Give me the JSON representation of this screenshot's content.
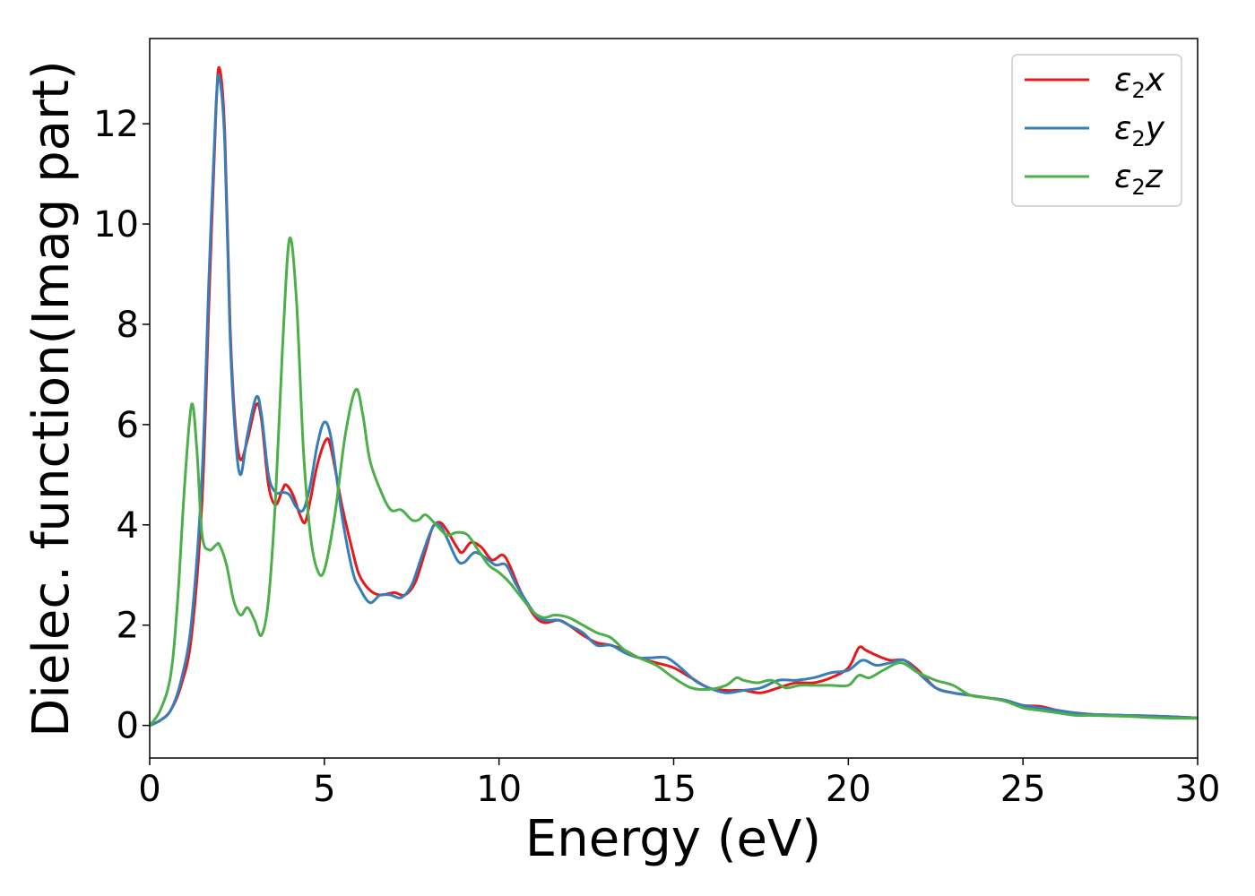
{
  "chart_data": {
    "type": "line",
    "title": "",
    "xlabel": "Energy (eV)",
    "ylabel": "Dielec. function(Imag part)",
    "xlim": [
      0,
      30
    ],
    "ylim": [
      -0.65,
      13.7
    ],
    "xticks": [
      0,
      5,
      10,
      15,
      20,
      25,
      30
    ],
    "yticks": [
      0,
      2,
      4,
      6,
      8,
      10,
      12
    ],
    "grid": false,
    "legend_position": "top-right",
    "series": [
      {
        "name": "ε₂x",
        "legend_base": "ε",
        "legend_sub": "2",
        "legend_suffix": "x",
        "color": "#e41a1c",
        "points": [
          [
            0,
            0
          ],
          [
            0.3,
            0.1
          ],
          [
            0.6,
            0.3
          ],
          [
            0.9,
            0.8
          ],
          [
            1.2,
            1.8
          ],
          [
            1.5,
            4.5
          ],
          [
            1.7,
            8.5
          ],
          [
            1.9,
            12.3
          ],
          [
            2.0,
            13.1
          ],
          [
            2.15,
            11.8
          ],
          [
            2.3,
            8.0
          ],
          [
            2.45,
            6.0
          ],
          [
            2.6,
            5.3
          ],
          [
            2.8,
            5.7
          ],
          [
            3.05,
            6.4
          ],
          [
            3.2,
            6.1
          ],
          [
            3.4,
            4.8
          ],
          [
            3.6,
            4.4
          ],
          [
            3.8,
            4.7
          ],
          [
            3.9,
            4.8
          ],
          [
            4.1,
            4.6
          ],
          [
            4.3,
            4.2
          ],
          [
            4.45,
            4.05
          ],
          [
            4.6,
            4.5
          ],
          [
            4.8,
            5.2
          ],
          [
            5.05,
            5.7
          ],
          [
            5.2,
            5.5
          ],
          [
            5.5,
            4.4
          ],
          [
            5.8,
            3.5
          ],
          [
            6.0,
            3.0
          ],
          [
            6.3,
            2.7
          ],
          [
            6.6,
            2.6
          ],
          [
            7.0,
            2.65
          ],
          [
            7.3,
            2.6
          ],
          [
            7.6,
            2.85
          ],
          [
            7.9,
            3.5
          ],
          [
            8.1,
            3.95
          ],
          [
            8.3,
            4.05
          ],
          [
            8.5,
            3.9
          ],
          [
            8.8,
            3.55
          ],
          [
            8.95,
            3.45
          ],
          [
            9.2,
            3.65
          ],
          [
            9.5,
            3.55
          ],
          [
            9.8,
            3.3
          ],
          [
            10.1,
            3.4
          ],
          [
            10.3,
            3.2
          ],
          [
            10.6,
            2.7
          ],
          [
            11.0,
            2.2
          ],
          [
            11.3,
            2.05
          ],
          [
            11.7,
            2.1
          ],
          [
            12.0,
            2.0
          ],
          [
            12.4,
            1.8
          ],
          [
            12.8,
            1.65
          ],
          [
            13.2,
            1.6
          ],
          [
            13.6,
            1.5
          ],
          [
            14.0,
            1.35
          ],
          [
            14.5,
            1.25
          ],
          [
            15.0,
            1.15
          ],
          [
            15.5,
            0.95
          ],
          [
            16.0,
            0.75
          ],
          [
            16.5,
            0.7
          ],
          [
            17.0,
            0.7
          ],
          [
            17.5,
            0.65
          ],
          [
            18.0,
            0.75
          ],
          [
            18.5,
            0.85
          ],
          [
            19.0,
            0.85
          ],
          [
            19.5,
            0.95
          ],
          [
            20.0,
            1.15
          ],
          [
            20.3,
            1.55
          ],
          [
            20.5,
            1.5
          ],
          [
            20.8,
            1.4
          ],
          [
            21.2,
            1.3
          ],
          [
            21.6,
            1.3
          ],
          [
            22.0,
            1.1
          ],
          [
            22.5,
            0.75
          ],
          [
            23.0,
            0.65
          ],
          [
            23.5,
            0.6
          ],
          [
            24.0,
            0.55
          ],
          [
            24.5,
            0.5
          ],
          [
            25.0,
            0.4
          ],
          [
            25.5,
            0.38
          ],
          [
            26.0,
            0.3
          ],
          [
            26.5,
            0.25
          ],
          [
            27.0,
            0.22
          ],
          [
            28.0,
            0.2
          ],
          [
            29.0,
            0.18
          ],
          [
            30.0,
            0.15
          ]
        ]
      },
      {
        "name": "ε₂y",
        "legend_base": "ε",
        "legend_sub": "2",
        "legend_suffix": "y",
        "color": "#377eb8",
        "points": [
          [
            0,
            0
          ],
          [
            0.3,
            0.1
          ],
          [
            0.6,
            0.3
          ],
          [
            0.9,
            0.9
          ],
          [
            1.2,
            2.1
          ],
          [
            1.5,
            5.0
          ],
          [
            1.7,
            9.0
          ],
          [
            1.9,
            12.4
          ],
          [
            2.0,
            12.9
          ],
          [
            2.15,
            11.6
          ],
          [
            2.3,
            7.8
          ],
          [
            2.45,
            5.8
          ],
          [
            2.6,
            5.0
          ],
          [
            2.8,
            5.8
          ],
          [
            3.05,
            6.55
          ],
          [
            3.2,
            6.2
          ],
          [
            3.4,
            5.0
          ],
          [
            3.6,
            4.65
          ],
          [
            3.8,
            4.65
          ],
          [
            4.0,
            4.6
          ],
          [
            4.2,
            4.35
          ],
          [
            4.4,
            4.3
          ],
          [
            4.6,
            4.8
          ],
          [
            4.8,
            5.6
          ],
          [
            5.0,
            6.05
          ],
          [
            5.2,
            5.7
          ],
          [
            5.5,
            4.2
          ],
          [
            5.8,
            3.1
          ],
          [
            6.0,
            2.75
          ],
          [
            6.3,
            2.45
          ],
          [
            6.6,
            2.6
          ],
          [
            6.9,
            2.6
          ],
          [
            7.2,
            2.55
          ],
          [
            7.5,
            2.8
          ],
          [
            7.8,
            3.4
          ],
          [
            8.1,
            3.95
          ],
          [
            8.3,
            4.0
          ],
          [
            8.5,
            3.75
          ],
          [
            8.8,
            3.3
          ],
          [
            9.0,
            3.25
          ],
          [
            9.3,
            3.45
          ],
          [
            9.6,
            3.35
          ],
          [
            9.9,
            3.2
          ],
          [
            10.2,
            3.2
          ],
          [
            10.5,
            2.8
          ],
          [
            11.0,
            2.25
          ],
          [
            11.3,
            2.1
          ],
          [
            11.7,
            2.1
          ],
          [
            12.0,
            2.0
          ],
          [
            12.4,
            1.85
          ],
          [
            12.8,
            1.6
          ],
          [
            13.2,
            1.6
          ],
          [
            13.6,
            1.45
          ],
          [
            14.0,
            1.35
          ],
          [
            14.4,
            1.35
          ],
          [
            14.8,
            1.35
          ],
          [
            15.2,
            1.15
          ],
          [
            15.6,
            0.9
          ],
          [
            16.0,
            0.75
          ],
          [
            16.5,
            0.65
          ],
          [
            17.0,
            0.7
          ],
          [
            17.5,
            0.75
          ],
          [
            18.0,
            0.9
          ],
          [
            18.5,
            0.9
          ],
          [
            19.0,
            0.95
          ],
          [
            19.5,
            1.05
          ],
          [
            20.0,
            1.1
          ],
          [
            20.4,
            1.3
          ],
          [
            20.8,
            1.2
          ],
          [
            21.2,
            1.25
          ],
          [
            21.6,
            1.3
          ],
          [
            22.0,
            1.05
          ],
          [
            22.5,
            0.75
          ],
          [
            23.0,
            0.65
          ],
          [
            23.5,
            0.6
          ],
          [
            24.0,
            0.55
          ],
          [
            24.5,
            0.5
          ],
          [
            25.0,
            0.4
          ],
          [
            25.5,
            0.35
          ],
          [
            26.0,
            0.3
          ],
          [
            26.5,
            0.25
          ],
          [
            27.0,
            0.22
          ],
          [
            28.0,
            0.2
          ],
          [
            29.0,
            0.18
          ],
          [
            30.0,
            0.15
          ]
        ]
      },
      {
        "name": "ε₂z",
        "legend_base": "ε",
        "legend_sub": "2",
        "legend_suffix": "z",
        "color": "#4daf4a",
        "points": [
          [
            0,
            0
          ],
          [
            0.3,
            0.3
          ],
          [
            0.6,
            1.0
          ],
          [
            0.8,
            2.5
          ],
          [
            1.0,
            4.8
          ],
          [
            1.2,
            6.4
          ],
          [
            1.35,
            5.5
          ],
          [
            1.5,
            3.8
          ],
          [
            1.7,
            3.5
          ],
          [
            1.9,
            3.6
          ],
          [
            2.0,
            3.6
          ],
          [
            2.2,
            3.2
          ],
          [
            2.4,
            2.5
          ],
          [
            2.6,
            2.2
          ],
          [
            2.8,
            2.35
          ],
          [
            3.0,
            2.1
          ],
          [
            3.2,
            1.8
          ],
          [
            3.4,
            2.5
          ],
          [
            3.6,
            4.5
          ],
          [
            3.8,
            7.5
          ],
          [
            4.0,
            9.7
          ],
          [
            4.2,
            8.5
          ],
          [
            4.4,
            5.5
          ],
          [
            4.6,
            3.8
          ],
          [
            4.8,
            3.1
          ],
          [
            5.0,
            3.1
          ],
          [
            5.3,
            4.2
          ],
          [
            5.6,
            5.8
          ],
          [
            5.9,
            6.7
          ],
          [
            6.1,
            6.2
          ],
          [
            6.3,
            5.3
          ],
          [
            6.6,
            4.7
          ],
          [
            6.9,
            4.3
          ],
          [
            7.2,
            4.3
          ],
          [
            7.5,
            4.1
          ],
          [
            7.7,
            4.1
          ],
          [
            7.9,
            4.2
          ],
          [
            8.2,
            4.0
          ],
          [
            8.5,
            3.8
          ],
          [
            8.8,
            3.85
          ],
          [
            9.1,
            3.8
          ],
          [
            9.4,
            3.5
          ],
          [
            9.7,
            3.2
          ],
          [
            10.0,
            3.05
          ],
          [
            10.3,
            2.85
          ],
          [
            10.7,
            2.5
          ],
          [
            11.0,
            2.25
          ],
          [
            11.3,
            2.15
          ],
          [
            11.6,
            2.2
          ],
          [
            12.0,
            2.15
          ],
          [
            12.4,
            2.0
          ],
          [
            12.8,
            1.85
          ],
          [
            13.2,
            1.75
          ],
          [
            13.6,
            1.5
          ],
          [
            14.0,
            1.35
          ],
          [
            14.5,
            1.2
          ],
          [
            15.0,
            0.95
          ],
          [
            15.5,
            0.75
          ],
          [
            16.0,
            0.72
          ],
          [
            16.5,
            0.8
          ],
          [
            16.8,
            0.95
          ],
          [
            17.0,
            0.9
          ],
          [
            17.4,
            0.85
          ],
          [
            17.8,
            0.9
          ],
          [
            18.2,
            0.75
          ],
          [
            18.6,
            0.8
          ],
          [
            19.0,
            0.8
          ],
          [
            19.5,
            0.8
          ],
          [
            20.0,
            0.8
          ],
          [
            20.3,
            1.0
          ],
          [
            20.6,
            0.95
          ],
          [
            21.0,
            1.1
          ],
          [
            21.5,
            1.25
          ],
          [
            22.0,
            1.05
          ],
          [
            22.5,
            0.9
          ],
          [
            23.0,
            0.8
          ],
          [
            23.5,
            0.6
          ],
          [
            24.0,
            0.55
          ],
          [
            24.5,
            0.48
          ],
          [
            25.0,
            0.35
          ],
          [
            25.5,
            0.3
          ],
          [
            26.0,
            0.25
          ],
          [
            26.5,
            0.2
          ],
          [
            27.0,
            0.2
          ],
          [
            28.0,
            0.18
          ],
          [
            29.0,
            0.15
          ],
          [
            30.0,
            0.14
          ]
        ]
      }
    ]
  }
}
